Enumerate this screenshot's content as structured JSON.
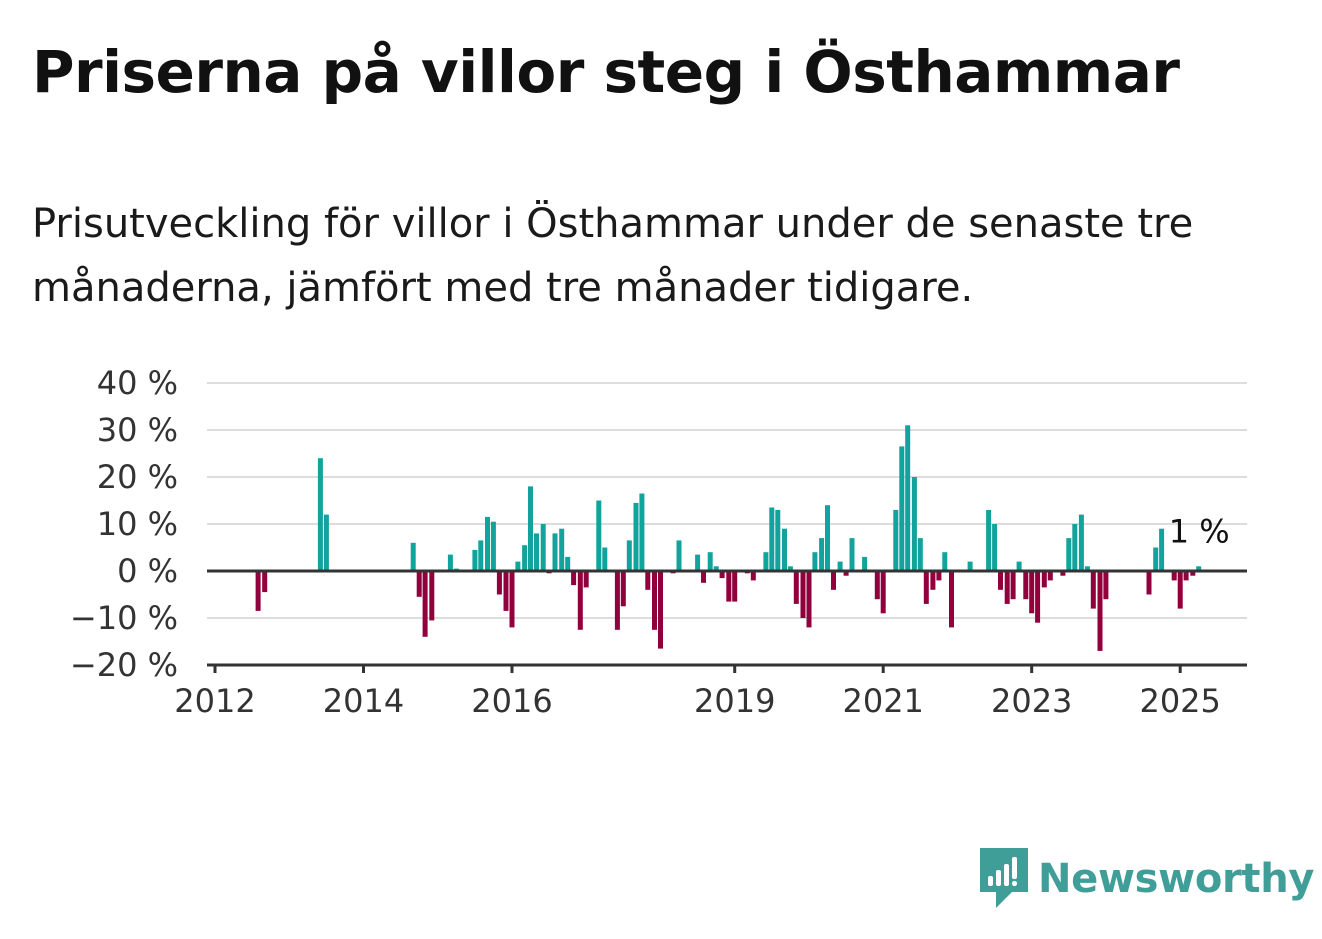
{
  "title": "Priserna på villor steg i Östhammar",
  "subtitle": "Prisutveckling för villor i Östhammar under de senaste tre månaderna, jämfört med tre månader tidigare.",
  "brand": {
    "name": "Newsworthy"
  },
  "colors": {
    "positive": "#12a39c",
    "negative": "#91003c",
    "grid": "#dddddd",
    "axis": "#333333",
    "brand": "#3f9e97"
  },
  "chart_data": {
    "type": "bar",
    "ylim": [
      -20,
      40
    ],
    "yticks": [
      -20,
      -10,
      0,
      10,
      20,
      30,
      40
    ],
    "ytick_labels": [
      "−20 %",
      "−10 %",
      "0 %",
      "10 %",
      "20 %",
      "30 %",
      "40 %"
    ],
    "xticks": [
      2012,
      2014,
      2016,
      2019,
      2021,
      2023,
      2025
    ],
    "x_start": 2012,
    "x_end": 2025.9,
    "grid": true,
    "annotation": {
      "text": "1 %",
      "x": 2025.25,
      "y": 1
    },
    "points": [
      {
        "x": 2012.58,
        "y": -8.5
      },
      {
        "x": 2012.67,
        "y": -4.5
      },
      {
        "x": 2013.42,
        "y": 24
      },
      {
        "x": 2013.5,
        "y": 12
      },
      {
        "x": 2014.67,
        "y": 6
      },
      {
        "x": 2014.75,
        "y": -5.5
      },
      {
        "x": 2014.83,
        "y": -14
      },
      {
        "x": 2014.92,
        "y": -10.5
      },
      {
        "x": 2015.17,
        "y": 3.5
      },
      {
        "x": 2015.25,
        "y": 0.5
      },
      {
        "x": 2015.5,
        "y": 4.5
      },
      {
        "x": 2015.58,
        "y": 6.5
      },
      {
        "x": 2015.67,
        "y": 11.5
      },
      {
        "x": 2015.75,
        "y": 10.5
      },
      {
        "x": 2015.83,
        "y": -5
      },
      {
        "x": 2015.92,
        "y": -8.5
      },
      {
        "x": 2016.0,
        "y": -12
      },
      {
        "x": 2016.08,
        "y": 2
      },
      {
        "x": 2016.17,
        "y": 5.5
      },
      {
        "x": 2016.25,
        "y": 18
      },
      {
        "x": 2016.33,
        "y": 8
      },
      {
        "x": 2016.42,
        "y": 10
      },
      {
        "x": 2016.5,
        "y": -0.5
      },
      {
        "x": 2016.58,
        "y": 8
      },
      {
        "x": 2016.67,
        "y": 9
      },
      {
        "x": 2016.75,
        "y": 3
      },
      {
        "x": 2016.83,
        "y": -3
      },
      {
        "x": 2016.92,
        "y": -12.5
      },
      {
        "x": 2017.0,
        "y": -3.5
      },
      {
        "x": 2017.17,
        "y": 15
      },
      {
        "x": 2017.25,
        "y": 5
      },
      {
        "x": 2017.42,
        "y": -12.5
      },
      {
        "x": 2017.5,
        "y": -7.5
      },
      {
        "x": 2017.58,
        "y": 6.5
      },
      {
        "x": 2017.67,
        "y": 14.5
      },
      {
        "x": 2017.75,
        "y": 16.5
      },
      {
        "x": 2017.83,
        "y": -4
      },
      {
        "x": 2017.92,
        "y": -12.5
      },
      {
        "x": 2018.0,
        "y": -16.5
      },
      {
        "x": 2018.17,
        "y": -0.5
      },
      {
        "x": 2018.25,
        "y": 6.5
      },
      {
        "x": 2018.5,
        "y": 3.5
      },
      {
        "x": 2018.58,
        "y": -2.5
      },
      {
        "x": 2018.67,
        "y": 4
      },
      {
        "x": 2018.75,
        "y": 1
      },
      {
        "x": 2018.83,
        "y": -1.5
      },
      {
        "x": 2018.92,
        "y": -6.5
      },
      {
        "x": 2019.0,
        "y": -6.5
      },
      {
        "x": 2019.17,
        "y": -0.5
      },
      {
        "x": 2019.25,
        "y": -2
      },
      {
        "x": 2019.42,
        "y": 4
      },
      {
        "x": 2019.5,
        "y": 13.5
      },
      {
        "x": 2019.58,
        "y": 13
      },
      {
        "x": 2019.67,
        "y": 9
      },
      {
        "x": 2019.75,
        "y": 1
      },
      {
        "x": 2019.83,
        "y": -7
      },
      {
        "x": 2019.92,
        "y": -10
      },
      {
        "x": 2020.0,
        "y": -12
      },
      {
        "x": 2020.08,
        "y": 4
      },
      {
        "x": 2020.17,
        "y": 7
      },
      {
        "x": 2020.25,
        "y": 14
      },
      {
        "x": 2020.33,
        "y": -4
      },
      {
        "x": 2020.42,
        "y": 2
      },
      {
        "x": 2020.5,
        "y": -1
      },
      {
        "x": 2020.58,
        "y": 7
      },
      {
        "x": 2020.75,
        "y": 3
      },
      {
        "x": 2020.92,
        "y": -6
      },
      {
        "x": 2021.0,
        "y": -9
      },
      {
        "x": 2021.17,
        "y": 13
      },
      {
        "x": 2021.25,
        "y": 26.5
      },
      {
        "x": 2021.33,
        "y": 31
      },
      {
        "x": 2021.42,
        "y": 20
      },
      {
        "x": 2021.5,
        "y": 7
      },
      {
        "x": 2021.58,
        "y": -7
      },
      {
        "x": 2021.67,
        "y": -4
      },
      {
        "x": 2021.75,
        "y": -2
      },
      {
        "x": 2021.83,
        "y": 4
      },
      {
        "x": 2021.92,
        "y": -12
      },
      {
        "x": 2022.17,
        "y": 2
      },
      {
        "x": 2022.42,
        "y": 13
      },
      {
        "x": 2022.5,
        "y": 10
      },
      {
        "x": 2022.58,
        "y": -4
      },
      {
        "x": 2022.67,
        "y": -7
      },
      {
        "x": 2022.75,
        "y": -6
      },
      {
        "x": 2022.83,
        "y": 2
      },
      {
        "x": 2022.92,
        "y": -6
      },
      {
        "x": 2023.0,
        "y": -9
      },
      {
        "x": 2023.08,
        "y": -11
      },
      {
        "x": 2023.17,
        "y": -3.5
      },
      {
        "x": 2023.25,
        "y": -2
      },
      {
        "x": 2023.42,
        "y": -1
      },
      {
        "x": 2023.5,
        "y": 7
      },
      {
        "x": 2023.58,
        "y": 10
      },
      {
        "x": 2023.67,
        "y": 12
      },
      {
        "x": 2023.75,
        "y": 1
      },
      {
        "x": 2023.83,
        "y": -8
      },
      {
        "x": 2023.92,
        "y": -17
      },
      {
        "x": 2024.0,
        "y": -6
      },
      {
        "x": 2024.58,
        "y": -5
      },
      {
        "x": 2024.67,
        "y": 5
      },
      {
        "x": 2024.75,
        "y": 9
      },
      {
        "x": 2024.92,
        "y": -2
      },
      {
        "x": 2025.0,
        "y": -8
      },
      {
        "x": 2025.08,
        "y": -2
      },
      {
        "x": 2025.17,
        "y": -1
      },
      {
        "x": 2025.25,
        "y": 1
      }
    ]
  }
}
